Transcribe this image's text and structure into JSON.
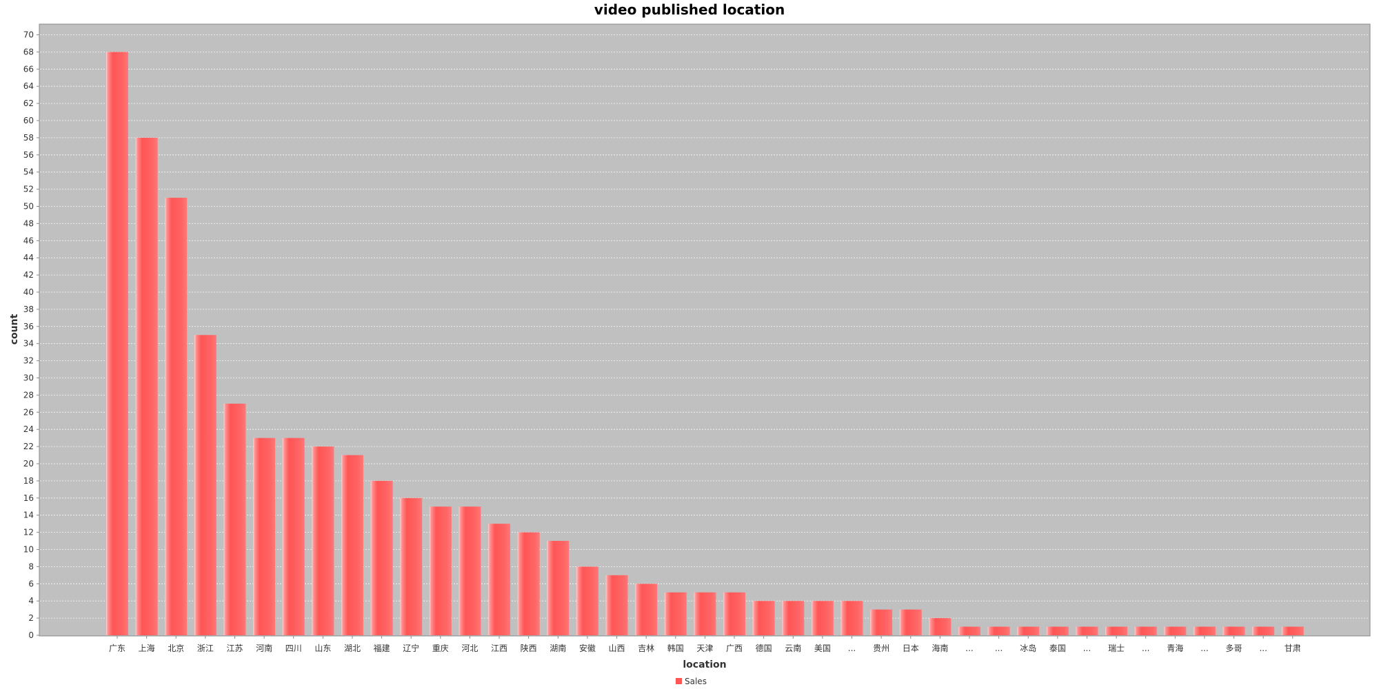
{
  "chart_data": {
    "type": "bar",
    "title": "video published location",
    "xlabel": "location",
    "ylabel": "count",
    "ylim": [
      0,
      71
    ],
    "yticks": [
      0,
      2,
      4,
      6,
      8,
      10,
      12,
      14,
      16,
      18,
      20,
      22,
      24,
      26,
      28,
      30,
      32,
      34,
      36,
      38,
      40,
      42,
      44,
      46,
      48,
      50,
      52,
      54,
      56,
      58,
      60,
      62,
      64,
      66,
      68,
      70
    ],
    "grid": true,
    "legend_position": "bottom-center",
    "categories": [
      "广东",
      "上海",
      "北京",
      "浙江",
      "江苏",
      "河南",
      "四川",
      "山东",
      "湖北",
      "福建",
      "辽宁",
      "重庆",
      "河北",
      "江西",
      "陕西",
      "湖南",
      "安徽",
      "山西",
      "吉林",
      "韩国",
      "天津",
      "广西",
      "德国",
      "云南",
      "美国",
      "...",
      "贵州",
      "日本",
      "海南",
      "...",
      "...",
      "冰岛",
      "泰国",
      "...",
      "瑞士",
      "...",
      "青海",
      "...",
      "多哥",
      "...",
      "甘肃"
    ],
    "series": [
      {
        "name": "Sales",
        "color": "#ff5555",
        "values": [
          68,
          58,
          51,
          35,
          27,
          23,
          23,
          22,
          21,
          18,
          16,
          15,
          15,
          13,
          12,
          11,
          8,
          7,
          6,
          5,
          5,
          5,
          4,
          4,
          4,
          4,
          3,
          3,
          2,
          1,
          1,
          1,
          1,
          1,
          1,
          1,
          1,
          1,
          1,
          1,
          1
        ]
      }
    ],
    "colors": {
      "plot_background": "#c0c0c0",
      "gridline": "#ffffff",
      "bar": "#ff5555"
    }
  }
}
